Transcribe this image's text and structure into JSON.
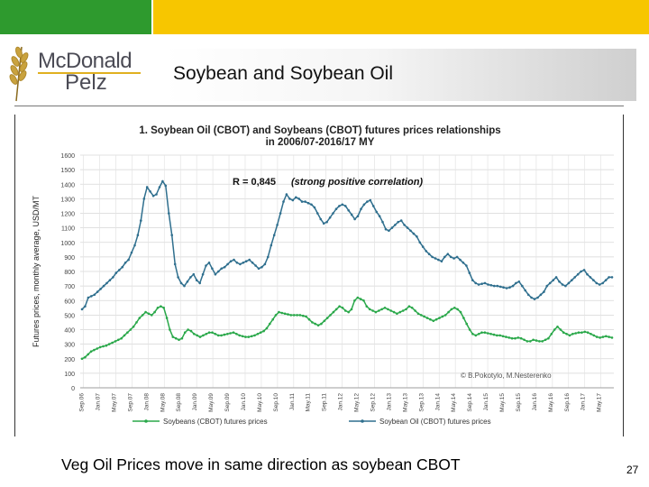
{
  "slide": {
    "title": "Soybean and Soybean Oil",
    "caption": "Veg Oil Prices move in same direction as soybean CBOT",
    "page_number": "27",
    "logo_line1": "McDonald",
    "logo_line2": "Pelz"
  },
  "colors": {
    "green_bar": "#2e9a2e",
    "yellow_bar": "#f7c600",
    "soybean_oil": "#2f6f8e",
    "soybeans": "#2aa84a"
  },
  "chart_data": {
    "type": "line",
    "title_line1": "1. Soybean Oil (CBOT) and Soybeans (CBOT) futures prices relationships",
    "title_line2": "in 2006/07-2016/17 MY",
    "annotation_r": "R = 0,845",
    "annotation_text": "(strong positive correlation)",
    "credit": "© B.Pokotylo, M.Nesterenko",
    "ylabel": "Futures prices, monthly average, USD/MT",
    "ylim": [
      0,
      1600
    ],
    "y_ticks": [
      "0",
      "100",
      "200",
      "300",
      "400",
      "500",
      "600",
      "700",
      "800",
      "900",
      "1000",
      "1100",
      "1200",
      "1300",
      "1400",
      "1500",
      "1600"
    ],
    "x_ticks": [
      "Sep.06",
      "Jan.07",
      "May.07",
      "Sep.07",
      "Jan.08",
      "May.08",
      "Sep.08",
      "Jan.09",
      "May.09",
      "Sep.09",
      "Jan.10",
      "May.10",
      "Sep.10",
      "Jan.11",
      "May.11",
      "Sep.11",
      "Jan.12",
      "May.12",
      "Sep.12",
      "Jan.13",
      "May.13",
      "Sep.13",
      "Jan.14",
      "May.14",
      "Sep.14",
      "Jan.15",
      "May.15",
      "Sep.15",
      "Jan.16",
      "May.16",
      "Sep.16",
      "Jan.17",
      "May.17"
    ],
    "series": [
      {
        "name": "Soybeans (CBOT) futures prices",
        "color": "#2aa84a",
        "values": [
          200,
          210,
          230,
          250,
          260,
          270,
          280,
          285,
          290,
          300,
          310,
          320,
          330,
          340,
          360,
          380,
          400,
          420,
          450,
          480,
          500,
          520,
          510,
          500,
          520,
          550,
          560,
          550,
          480,
          400,
          350,
          340,
          330,
          340,
          380,
          400,
          390,
          370,
          360,
          350,
          360,
          370,
          380,
          380,
          370,
          360,
          360,
          365,
          370,
          375,
          380,
          370,
          360,
          355,
          350,
          350,
          355,
          360,
          370,
          380,
          390,
          410,
          440,
          470,
          500,
          520,
          515,
          510,
          505,
          500,
          500,
          500,
          500,
          495,
          490,
          470,
          450,
          440,
          430,
          440,
          460,
          480,
          500,
          520,
          540,
          560,
          550,
          530,
          520,
          540,
          600,
          620,
          610,
          600,
          560,
          540,
          530,
          520,
          530,
          540,
          550,
          540,
          530,
          520,
          510,
          520,
          530,
          540,
          560,
          550,
          530,
          510,
          500,
          490,
          480,
          470,
          460,
          470,
          480,
          490,
          500,
          520,
          540,
          550,
          540,
          520,
          480,
          440,
          400,
          370,
          360,
          370,
          380,
          380,
          375,
          370,
          365,
          360,
          360,
          355,
          350,
          345,
          340,
          340,
          345,
          340,
          330,
          320,
          320,
          330,
          325,
          320,
          320,
          330,
          340,
          370,
          400,
          420,
          400,
          380,
          370,
          360,
          370,
          375,
          380,
          380,
          385,
          380,
          370,
          360,
          350,
          345,
          350,
          355,
          350,
          345
        ]
      },
      {
        "name": "Soybean Oil (CBOT) futures prices",
        "color": "#2f6f8e",
        "values": [
          540,
          560,
          620,
          630,
          640,
          660,
          680,
          700,
          720,
          740,
          760,
          790,
          810,
          830,
          860,
          880,
          930,
          980,
          1050,
          1150,
          1300,
          1380,
          1350,
          1320,
          1330,
          1380,
          1420,
          1390,
          1200,
          1050,
          850,
          760,
          720,
          700,
          730,
          760,
          780,
          740,
          720,
          780,
          840,
          860,
          820,
          780,
          800,
          820,
          830,
          850,
          870,
          880,
          860,
          850,
          860,
          870,
          880,
          860,
          840,
          820,
          830,
          850,
          900,
          980,
          1050,
          1120,
          1200,
          1280,
          1330,
          1300,
          1290,
          1310,
          1300,
          1280,
          1280,
          1270,
          1260,
          1240,
          1200,
          1160,
          1130,
          1140,
          1170,
          1200,
          1230,
          1250,
          1260,
          1250,
          1220,
          1190,
          1160,
          1180,
          1230,
          1260,
          1280,
          1290,
          1250,
          1210,
          1180,
          1140,
          1090,
          1080,
          1100,
          1120,
          1140,
          1150,
          1120,
          1100,
          1080,
          1060,
          1040,
          1000,
          970,
          940,
          920,
          900,
          890,
          880,
          870,
          900,
          920,
          900,
          890,
          900,
          880,
          860,
          840,
          790,
          740,
          720,
          710,
          715,
          720,
          710,
          705,
          700,
          700,
          695,
          690,
          685,
          690,
          700,
          720,
          730,
          700,
          670,
          640,
          620,
          610,
          620,
          640,
          660,
          700,
          720,
          740,
          760,
          730,
          710,
          700,
          720,
          740,
          760,
          780,
          800,
          810,
          780,
          760,
          740,
          720,
          710,
          720,
          740,
          760,
          760
        ]
      }
    ],
    "grid": true,
    "legend_position": "bottom"
  }
}
